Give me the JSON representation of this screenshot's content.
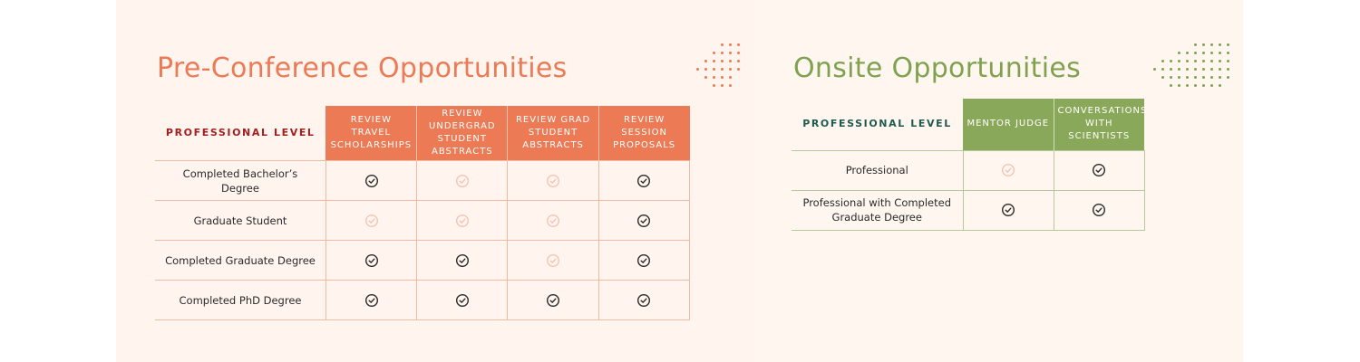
{
  "colors": {
    "pre_accent": "#ec7a55",
    "onsite_accent": "#7fa24f",
    "pre_level_text": "#a11f1f",
    "onsite_level_text": "#1f5a4e",
    "check_on": "#2a2a2a",
    "check_off": "#f3c3b3"
  },
  "pre": {
    "title": "Pre-Conference Opportunities",
    "level_header": "PROFESSIONAL LEVEL",
    "columns": [
      "REVIEW TRAVEL SCHOLARSHIPS",
      "REVIEW UNDERGRAD STUDENT ABSTRACTS",
      "REVIEW GRAD STUDENT ABSTRACTS",
      "REVIEW SESSION PROPOSALS"
    ],
    "rows": [
      {
        "label": "Completed Bachelor’s Degree",
        "checks": [
          true,
          false,
          false,
          true
        ]
      },
      {
        "label": "Graduate Student",
        "checks": [
          false,
          false,
          false,
          true
        ]
      },
      {
        "label": "Completed Graduate Degree",
        "checks": [
          true,
          true,
          false,
          true
        ]
      },
      {
        "label": "Completed PhD Degree",
        "checks": [
          true,
          true,
          true,
          true
        ]
      }
    ]
  },
  "onsite": {
    "title": "Onsite Opportunities",
    "level_header": "PROFESSIONAL LEVEL",
    "columns": [
      "MENTOR JUDGE",
      "CONVERSATIONS WITH SCIENTISTS"
    ],
    "rows": [
      {
        "label": "Professional",
        "checks": [
          false,
          true
        ]
      },
      {
        "label": "Professional with Completed Graduate Degree",
        "checks": [
          true,
          true
        ]
      }
    ]
  },
  "icons": {
    "check_on": "check-circle-icon",
    "check_off": "check-circle-faded-icon",
    "decor": "dot-grid-icon"
  }
}
